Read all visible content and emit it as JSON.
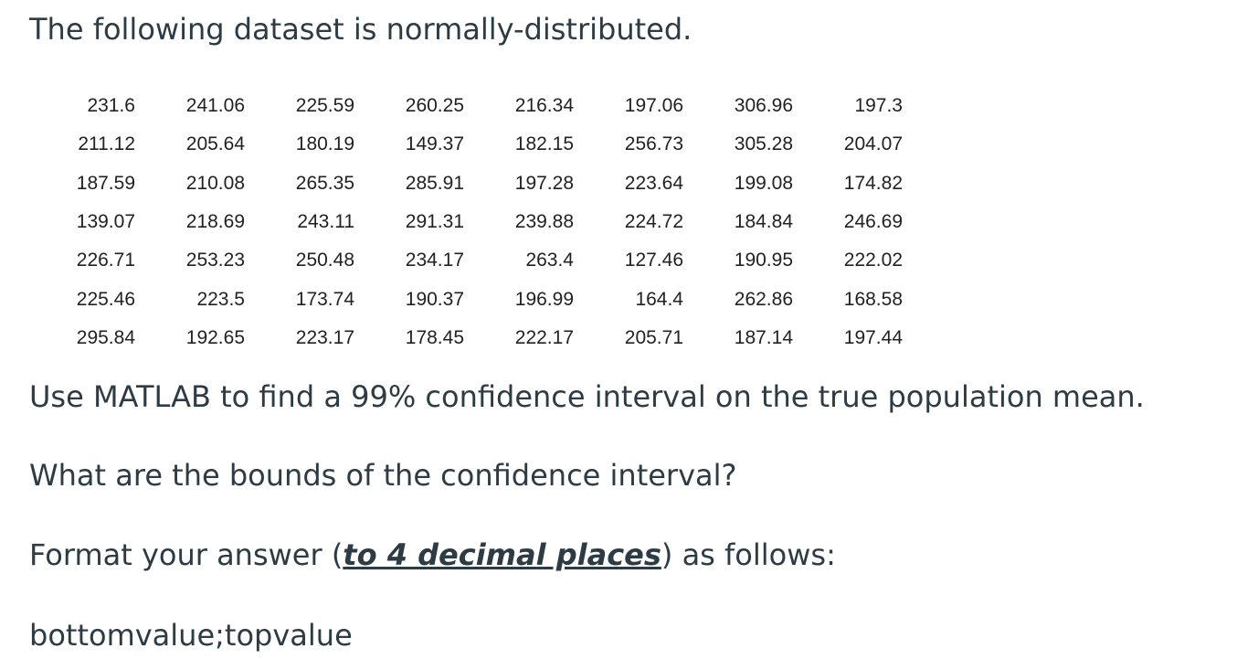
{
  "heading": "The following dataset is normally-distributed.",
  "table": {
    "rows": [
      [
        "231.6",
        "241.06",
        "225.59",
        "260.25",
        "216.34",
        "197.06",
        "306.96",
        "197.3"
      ],
      [
        "211.12",
        "205.64",
        "180.19",
        "149.37",
        "182.15",
        "256.73",
        "305.28",
        "204.07"
      ],
      [
        "187.59",
        "210.08",
        "265.35",
        "285.91",
        "197.28",
        "223.64",
        "199.08",
        "174.82"
      ],
      [
        "139.07",
        "218.69",
        "243.11",
        "291.31",
        "239.88",
        "224.72",
        "184.84",
        "246.69"
      ],
      [
        "226.71",
        "253.23",
        "250.48",
        "234.17",
        "263.4",
        "127.46",
        "190.95",
        "222.02"
      ],
      [
        "225.46",
        "223.5",
        "173.74",
        "190.37",
        "196.99",
        "164.4",
        "262.86",
        "168.58"
      ],
      [
        "295.84",
        "192.65",
        "223.17",
        "178.45",
        "222.17",
        "205.71",
        "187.14",
        "197.44"
      ]
    ]
  },
  "instruction": "Use MATLAB to find a 99% confidence interval on the true population mean.",
  "question": "What are the bounds of the confidence interval?",
  "format": {
    "before": "Format your answer (",
    "emphasis": "to 4 decimal places",
    "after": ") as follows:"
  },
  "answer_format": "bottomvalue;topvalue"
}
